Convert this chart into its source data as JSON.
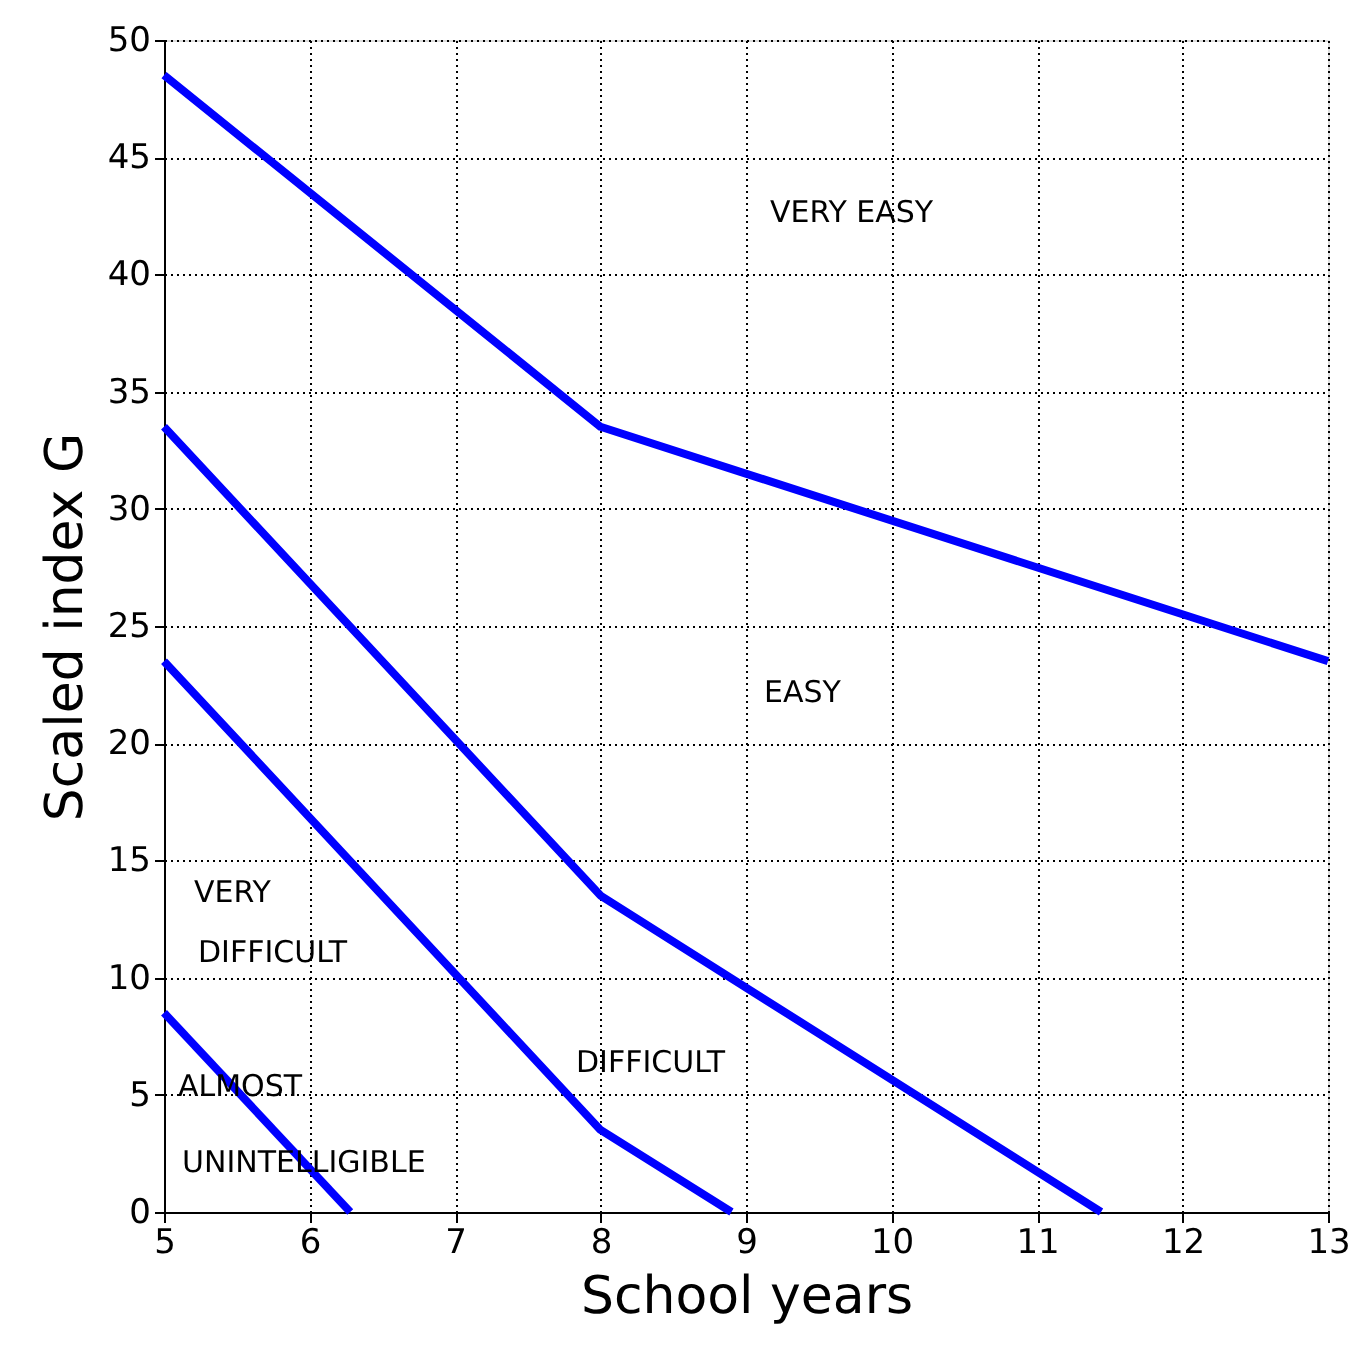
{
  "chart_data": {
    "type": "line",
    "xlabel": "School years",
    "ylabel": "Scaled index G",
    "xlim": [
      5,
      13
    ],
    "xticks": [
      5,
      6,
      7,
      8,
      9,
      10,
      11,
      12,
      13
    ],
    "ylim": [
      0,
      50
    ],
    "yticks": [
      0,
      5,
      10,
      15,
      20,
      25,
      30,
      35,
      40,
      45,
      50
    ],
    "grid": true,
    "marker": "none",
    "line_style": "solid",
    "series": [
      {
        "color": "#0000ff",
        "x": [
          5,
          8,
          13
        ],
        "values": [
          48.5,
          33.5,
          23.5
        ]
      },
      {
        "color": "#0000ff",
        "x": [
          5,
          8,
          11.44
        ],
        "values": [
          33.5,
          13.5,
          0
        ]
      },
      {
        "color": "#0000ff",
        "x": [
          5,
          8,
          8.9
        ],
        "values": [
          23.5,
          3.5,
          0
        ]
      },
      {
        "color": "#0000ff",
        "x": [
          5,
          6.28
        ],
        "values": [
          8.5,
          0
        ]
      }
    ],
    "annotations": [
      "VERY EASY",
      "EASY",
      "VERY",
      "DIFFICULT",
      "DIFFICULT",
      "ALMOST",
      "UNINTELLIGIBLE"
    ]
  }
}
